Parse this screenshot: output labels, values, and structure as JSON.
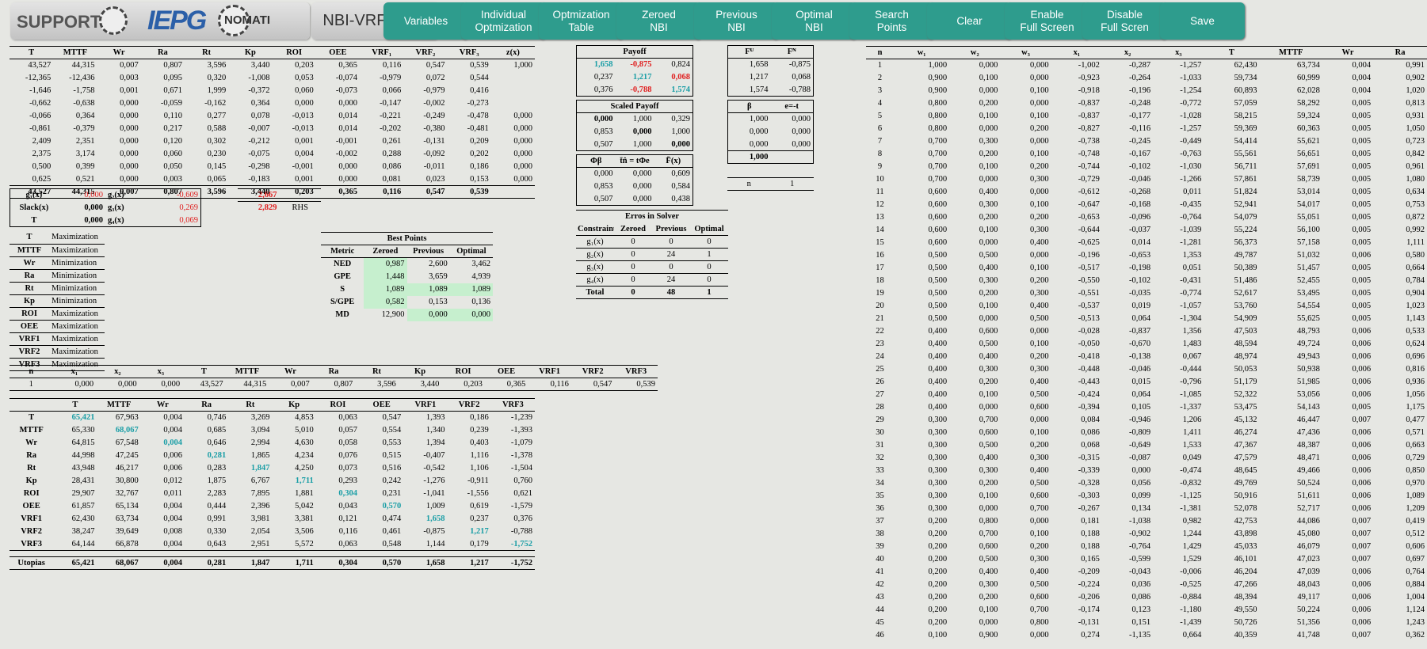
{
  "header": {
    "logo_text": "SUPPORT",
    "logo_brand": "IEPG",
    "logo_brand2": "NOMATI",
    "app_title": "NBI-VRF 3x3Y",
    "buttons": [
      "Variables",
      "Individual\nOptmization",
      "Optmization\nTable",
      "Zeroed\nNBI",
      "Previous\nNBI",
      "Optimal\nNBI",
      "Search\nPoints",
      "Clear",
      "Enable\nFull Screen",
      "Disable\nFull Scren",
      "Save"
    ]
  },
  "main_table": {
    "headers": [
      "T",
      "MTTF",
      "Wr",
      "Ra",
      "Rt",
      "Kp",
      "ROI",
      "OEE",
      "VRF₁",
      "VRF₂",
      "VRF₃",
      "z(x)"
    ],
    "rows": [
      [
        "43,527",
        "44,315",
        "0,007",
        "0,807",
        "3,596",
        "3,440",
        "0,203",
        "0,365",
        "0,116",
        "0,547",
        "0,539",
        "1,000"
      ],
      [
        "-12,365",
        "-12,436",
        "0,003",
        "0,095",
        "0,320",
        "-1,008",
        "0,053",
        "-0,074",
        "-0,979",
        "0,072",
        "0,544",
        ""
      ],
      [
        "-1,646",
        "-1,758",
        "0,001",
        "0,671",
        "1,999",
        "-0,372",
        "0,060",
        "-0,073",
        "0,066",
        "-0,979",
        "0,416",
        ""
      ],
      [
        "-0,662",
        "-0,638",
        "0,000",
        "-0,059",
        "-0,162",
        "0,364",
        "0,000",
        "0,000",
        "-0,147",
        "-0,002",
        "-0,273",
        ""
      ],
      [
        "-0,066",
        "0,364",
        "0,000",
        "0,110",
        "0,277",
        "0,078",
        "-0,013",
        "0,014",
        "-0,221",
        "-0,249",
        "-0,478",
        "0,000"
      ],
      [
        "-0,861",
        "-0,379",
        "0,000",
        "0,217",
        "0,588",
        "-0,007",
        "-0,013",
        "0,014",
        "-0,202",
        "-0,380",
        "-0,481",
        "0,000"
      ],
      [
        "2,409",
        "2,351",
        "0,000",
        "0,120",
        "0,302",
        "-0,212",
        "0,001",
        "-0,001",
        "0,261",
        "-0,131",
        "0,209",
        "0,000"
      ],
      [
        "2,375",
        "3,174",
        "0,000",
        "0,060",
        "0,230",
        "-0,075",
        "0,004",
        "-0,002",
        "0,288",
        "-0,092",
        "0,202",
        "0,000"
      ],
      [
        "0,500",
        "0,399",
        "0,000",
        "0,050",
        "0,145",
        "-0,298",
        "-0,001",
        "0,000",
        "0,086",
        "-0,011",
        "0,186",
        "0,000"
      ],
      [
        "0,625",
        "0,521",
        "0,000",
        "0,003",
        "0,065",
        "-0,183",
        "0,001",
        "0,000",
        "0,081",
        "0,023",
        "0,153",
        "0,000"
      ]
    ],
    "total": [
      "43,527",
      "44,315",
      "0,007",
      "0,807",
      "3,596",
      "3,440",
      "0,203",
      "0,365",
      "0,116",
      "0,547",
      "0,539",
      ""
    ]
  },
  "constraints": {
    "rows": [
      [
        "g₁(x)",
        "0,000",
        "g₂(x)",
        "-0,609"
      ],
      [
        "Slack(x)",
        "0,000",
        "g₃(x)",
        "0,269"
      ],
      [
        "T",
        "0,000",
        "g₄(x)",
        "0,069"
      ]
    ],
    "rhs_values": [
      "2,667",
      "2,829"
    ],
    "rhs_label": "RHS"
  },
  "objectives": [
    [
      "T",
      "Maximization"
    ],
    [
      "MTTF",
      "Maximization"
    ],
    [
      "Wr",
      "Minimization"
    ],
    [
      "Ra",
      "Minimization"
    ],
    [
      "Rt",
      "Minimization"
    ],
    [
      "Kp",
      "Minimization"
    ],
    [
      "ROI",
      "Maximization"
    ],
    [
      "OEE",
      "Maximization"
    ],
    [
      "VRF1",
      "Maximization"
    ],
    [
      "VRF2",
      "Maximization"
    ],
    [
      "VRF3",
      "Maximization"
    ]
  ],
  "best_points": {
    "title": "Best Points",
    "headers": [
      "Metric",
      "Zeroed",
      "Previous",
      "Optimal"
    ],
    "rows": [
      [
        "NED",
        "0,987",
        "2,600",
        "3,462"
      ],
      [
        "GPE",
        "1,448",
        "3,659",
        "4,939"
      ],
      [
        "S",
        "1,089",
        "1,089",
        "1,089"
      ],
      [
        "S/GPE",
        "0,582",
        "0,153",
        "0,136"
      ],
      [
        "MD",
        "12,900",
        "0,000",
        "0,000"
      ]
    ]
  },
  "payoff": {
    "title": "Payoff",
    "rows": [
      [
        "1,658",
        "-0,875",
        "0,824"
      ],
      [
        "0,237",
        "1,217",
        "0,068"
      ],
      [
        "0,376",
        "-0,788",
        "1,574"
      ]
    ]
  },
  "scaled_payoff": {
    "title": "Scaled Payoff",
    "rows": [
      [
        "0,000",
        "1,000",
        "0,329"
      ],
      [
        "0,853",
        "0,000",
        "1,000"
      ],
      [
        "0,507",
        "1,000",
        "0,000"
      ]
    ]
  },
  "phi_table": {
    "headers": [
      "Φβ",
      "t̄n̂ = tΦe",
      "F̄(x)"
    ],
    "rows": [
      [
        "0,000",
        "0,000",
        "0,609"
      ],
      [
        "0,853",
        "0,000",
        "0,584"
      ],
      [
        "0,507",
        "0,000",
        "0,438"
      ]
    ]
  },
  "fu_fn": {
    "headers": [
      "Fᵁ",
      "Fᴺ"
    ],
    "rows": [
      [
        "1,658",
        "-0,875"
      ],
      [
        "1,217",
        "0,068"
      ],
      [
        "1,574",
        "-0,788"
      ]
    ]
  },
  "beta": {
    "headers": [
      "β",
      "e=-t"
    ],
    "rows": [
      [
        "1,000",
        "0,000"
      ],
      [
        "0,000",
        "0,000"
      ],
      [
        "0,000",
        "0,000"
      ]
    ],
    "sum": "1,000"
  },
  "n_value": {
    "label": "n",
    "value": "1"
  },
  "errors": {
    "title": "Erros in Solver",
    "headers": [
      "Constraint",
      "Zeroed",
      "Previous",
      "Optimal"
    ],
    "rows": [
      [
        "g₁(x)",
        "0",
        "0",
        "0"
      ],
      [
        "g₂(x)",
        "0",
        "24",
        "1"
      ],
      [
        "g₃(x)",
        "0",
        "0",
        "0"
      ],
      [
        "g₄(x)",
        "0",
        "24",
        "0"
      ]
    ],
    "total": [
      "Total",
      "0",
      "48",
      "1"
    ]
  },
  "solution": {
    "headers": [
      "n",
      "x₁",
      "x₂",
      "x₃",
      "T",
      "MTTF",
      "Wr",
      "Ra",
      "Rt",
      "Kp",
      "ROI",
      "OEE",
      "VRF1",
      "VRF2",
      "VRF3"
    ],
    "row": [
      "1",
      "0,000",
      "0,000",
      "0,000",
      "43,527",
      "44,315",
      "0,007",
      "0,807",
      "3,596",
      "3,440",
      "0,203",
      "0,365",
      "0,116",
      "0,547",
      "0,539"
    ]
  },
  "payoff_matrix": {
    "headers": [
      "",
      "T",
      "MTTF",
      "Wr",
      "Ra",
      "Rt",
      "Kp",
      "ROI",
      "OEE",
      "VRF1",
      "VRF2",
      "VRF3"
    ],
    "rows": [
      [
        "T",
        "65,421",
        "67,963",
        "0,004",
        "0,746",
        "3,269",
        "4,853",
        "0,063",
        "0,547",
        "1,393",
        "0,186",
        "-1,239"
      ],
      [
        "MTTF",
        "65,330",
        "68,067",
        "0,004",
        "0,685",
        "3,094",
        "5,010",
        "0,057",
        "0,554",
        "1,340",
        "0,239",
        "-1,393"
      ],
      [
        "Wr",
        "64,815",
        "67,548",
        "0,004",
        "0,646",
        "2,994",
        "4,630",
        "0,058",
        "0,553",
        "1,394",
        "0,403",
        "-1,079"
      ],
      [
        "Ra",
        "44,998",
        "47,245",
        "0,006",
        "0,281",
        "1,865",
        "4,234",
        "0,076",
        "0,515",
        "-0,407",
        "1,116",
        "-1,378"
      ],
      [
        "Rt",
        "43,948",
        "46,217",
        "0,006",
        "0,283",
        "1,847",
        "4,250",
        "0,073",
        "0,516",
        "-0,542",
        "1,106",
        "-1,504"
      ],
      [
        "Kp",
        "28,431",
        "30,800",
        "0,012",
        "1,875",
        "6,767",
        "1,711",
        "0,293",
        "0,242",
        "-1,276",
        "-0,911",
        "0,760"
      ],
      [
        "ROI",
        "29,907",
        "32,767",
        "0,011",
        "2,283",
        "7,895",
        "1,881",
        "0,304",
        "0,231",
        "-1,041",
        "-1,556",
        "0,621"
      ],
      [
        "OEE",
        "61,857",
        "65,134",
        "0,004",
        "0,444",
        "2,396",
        "5,042",
        "0,043",
        "0,570",
        "1,009",
        "0,619",
        "-1,579"
      ],
      [
        "VRF1",
        "62,430",
        "63,734",
        "0,004",
        "0,991",
        "3,981",
        "3,381",
        "0,121",
        "0,474",
        "1,658",
        "0,237",
        "0,376"
      ],
      [
        "VRF2",
        "38,247",
        "39,649",
        "0,008",
        "0,330",
        "2,054",
        "3,506",
        "0,116",
        "0,461",
        "-0,875",
        "1,217",
        "-0,788"
      ],
      [
        "VRF3",
        "64,144",
        "66,878",
        "0,004",
        "0,643",
        "2,951",
        "5,572",
        "0,063",
        "0,548",
        "1,144",
        "0,179",
        "-1,752"
      ]
    ],
    "utopias": [
      "Utopias",
      "65,421",
      "68,067",
      "0,004",
      "0,281",
      "1,847",
      "1,711",
      "0,304",
      "0,570",
      "1,658",
      "1,217",
      "-1,752"
    ]
  },
  "search": {
    "headers": [
      "n",
      "w₁",
      "w₂",
      "w₃",
      "x₁",
      "x₂",
      "x₃",
      "T",
      "MTTF",
      "Wr",
      "Ra"
    ],
    "rows": [
      [
        "1",
        "1,000",
        "0,000",
        "0,000",
        "-1,002",
        "-0,287",
        "-1,257",
        "62,430",
        "63,734",
        "0,004",
        "0,991"
      ],
      [
        "2",
        "0,900",
        "0,100",
        "0,000",
        "-0,923",
        "-0,264",
        "-1,033",
        "59,734",
        "60,999",
        "0,004",
        "0,902"
      ],
      [
        "3",
        "0,900",
        "0,000",
        "0,100",
        "-0,918",
        "-0,196",
        "-1,254",
        "60,893",
        "62,028",
        "0,004",
        "1,020"
      ],
      [
        "4",
        "0,800",
        "0,200",
        "0,000",
        "-0,837",
        "-0,248",
        "-0,772",
        "57,059",
        "58,292",
        "0,005",
        "0,813"
      ],
      [
        "5",
        "0,800",
        "0,100",
        "0,100",
        "-0,837",
        "-0,177",
        "-1,028",
        "58,215",
        "59,324",
        "0,005",
        "0,931"
      ],
      [
        "6",
        "0,800",
        "0,000",
        "0,200",
        "-0,827",
        "-0,116",
        "-1,257",
        "59,369",
        "60,363",
        "0,005",
        "1,050"
      ],
      [
        "7",
        "0,700",
        "0,300",
        "0,000",
        "-0,738",
        "-0,245",
        "-0,449",
        "54,414",
        "55,621",
        "0,005",
        "0,723"
      ],
      [
        "8",
        "0,700",
        "0,200",
        "0,100",
        "-0,748",
        "-0,167",
        "-0,763",
        "55,561",
        "56,651",
        "0,005",
        "0,842"
      ],
      [
        "9",
        "0,700",
        "0,100",
        "0,200",
        "-0,744",
        "-0,102",
        "-1,030",
        "56,711",
        "57,691",
        "0,005",
        "0,961"
      ],
      [
        "10",
        "0,700",
        "0,000",
        "0,300",
        "-0,729",
        "-0,046",
        "-1,266",
        "57,861",
        "58,739",
        "0,005",
        "1,080"
      ],
      [
        "11",
        "0,600",
        "0,400",
        "0,000",
        "-0,612",
        "-0,268",
        "0,011",
        "51,824",
        "53,014",
        "0,005",
        "0,634"
      ],
      [
        "12",
        "0,600",
        "0,300",
        "0,100",
        "-0,647",
        "-0,168",
        "-0,435",
        "52,941",
        "54,017",
        "0,005",
        "0,753"
      ],
      [
        "13",
        "0,600",
        "0,200",
        "0,200",
        "-0,653",
        "-0,096",
        "-0,764",
        "54,079",
        "55,051",
        "0,005",
        "0,872"
      ],
      [
        "14",
        "0,600",
        "0,100",
        "0,300",
        "-0,644",
        "-0,037",
        "-1,039",
        "55,224",
        "56,100",
        "0,005",
        "0,992"
      ],
      [
        "15",
        "0,600",
        "0,000",
        "0,400",
        "-0,625",
        "0,014",
        "-1,281",
        "56,373",
        "57,158",
        "0,005",
        "1,111"
      ],
      [
        "16",
        "0,500",
        "0,500",
        "0,000",
        "-0,196",
        "-0,653",
        "1,353",
        "49,787",
        "51,032",
        "0,006",
        "0,580"
      ],
      [
        "17",
        "0,500",
        "0,400",
        "0,100",
        "-0,517",
        "-0,198",
        "0,051",
        "50,389",
        "51,457",
        "0,005",
        "0,664"
      ],
      [
        "18",
        "0,500",
        "0,300",
        "0,200",
        "-0,550",
        "-0,102",
        "-0,431",
        "51,486",
        "52,455",
        "0,005",
        "0,784"
      ],
      [
        "19",
        "0,500",
        "0,200",
        "0,300",
        "-0,551",
        "-0,035",
        "-0,774",
        "52,617",
        "53,495",
        "0,005",
        "0,904"
      ],
      [
        "20",
        "0,500",
        "0,100",
        "0,400",
        "-0,537",
        "0,019",
        "-1,057",
        "53,760",
        "54,554",
        "0,005",
        "1,023"
      ],
      [
        "21",
        "0,500",
        "0,000",
        "0,500",
        "-0,513",
        "0,064",
        "-1,304",
        "54,909",
        "55,625",
        "0,005",
        "1,143"
      ],
      [
        "22",
        "0,400",
        "0,600",
        "0,000",
        "-0,028",
        "-0,837",
        "1,356",
        "47,503",
        "48,793",
        "0,006",
        "0,533"
      ],
      [
        "23",
        "0,400",
        "0,500",
        "0,100",
        "-0,050",
        "-0,670",
        "1,483",
        "48,594",
        "49,724",
        "0,006",
        "0,624"
      ],
      [
        "24",
        "0,400",
        "0,400",
        "0,200",
        "-0,418",
        "-0,138",
        "0,067",
        "48,974",
        "49,943",
        "0,006",
        "0,696"
      ],
      [
        "25",
        "0,400",
        "0,300",
        "0,300",
        "-0,448",
        "-0,046",
        "-0,444",
        "50,053",
        "50,938",
        "0,006",
        "0,816"
      ],
      [
        "26",
        "0,400",
        "0,200",
        "0,400",
        "-0,443",
        "0,015",
        "-0,796",
        "51,179",
        "51,985",
        "0,006",
        "0,936"
      ],
      [
        "27",
        "0,400",
        "0,100",
        "0,500",
        "-0,424",
        "0,064",
        "-1,085",
        "52,322",
        "53,056",
        "0,006",
        "1,056"
      ],
      [
        "28",
        "0,400",
        "0,000",
        "0,600",
        "-0,394",
        "0,105",
        "-1,337",
        "53,475",
        "54,143",
        "0,005",
        "1,175"
      ],
      [
        "29",
        "0,300",
        "0,700",
        "0,000",
        "0,084",
        "-0,946",
        "1,206",
        "45,132",
        "46,447",
        "0,007",
        "0,477"
      ],
      [
        "30",
        "0,300",
        "0,600",
        "0,100",
        "0,086",
        "-0,809",
        "1,411",
        "46,274",
        "47,436",
        "0,006",
        "0,571"
      ],
      [
        "31",
        "0,300",
        "0,500",
        "0,200",
        "0,068",
        "-0,649",
        "1,533",
        "47,367",
        "48,387",
        "0,006",
        "0,663"
      ],
      [
        "32",
        "0,300",
        "0,400",
        "0,300",
        "-0,315",
        "-0,087",
        "0,049",
        "47,579",
        "48,471",
        "0,006",
        "0,729"
      ],
      [
        "33",
        "0,300",
        "0,300",
        "0,400",
        "-0,339",
        "0,000",
        "-0,474",
        "48,645",
        "49,466",
        "0,006",
        "0,850"
      ],
      [
        "34",
        "0,300",
        "0,200",
        "0,500",
        "-0,328",
        "0,056",
        "-0,832",
        "49,769",
        "50,524",
        "0,006",
        "0,970"
      ],
      [
        "35",
        "0,300",
        "0,100",
        "0,600",
        "-0,303",
        "0,099",
        "-1,125",
        "50,916",
        "51,611",
        "0,006",
        "1,089"
      ],
      [
        "36",
        "0,300",
        "0,000",
        "0,700",
        "-0,267",
        "0,134",
        "-1,381",
        "52,078",
        "52,717",
        "0,006",
        "1,209"
      ],
      [
        "37",
        "0,200",
        "0,800",
        "0,000",
        "0,181",
        "-1,038",
        "0,982",
        "42,753",
        "44,086",
        "0,007",
        "0,419"
      ],
      [
        "38",
        "0,200",
        "0,700",
        "0,100",
        "0,188",
        "-0,902",
        "1,244",
        "43,898",
        "45,080",
        "0,007",
        "0,512"
      ],
      [
        "39",
        "0,200",
        "0,600",
        "0,200",
        "0,188",
        "-0,764",
        "1,429",
        "45,033",
        "46,079",
        "0,007",
        "0,606"
      ],
      [
        "40",
        "0,200",
        "0,500",
        "0,300",
        "0,165",
        "-0,599",
        "1,529",
        "46,101",
        "47,023",
        "0,007",
        "0,697"
      ],
      [
        "41",
        "0,200",
        "0,400",
        "0,400",
        "-0,209",
        "-0,043",
        "-0,006",
        "46,204",
        "47,039",
        "0,006",
        "0,764"
      ],
      [
        "42",
        "0,200",
        "0,300",
        "0,500",
        "-0,224",
        "0,036",
        "-0,525",
        "47,266",
        "48,043",
        "0,006",
        "0,884"
      ],
      [
        "43",
        "0,200",
        "0,200",
        "0,600",
        "-0,206",
        "0,086",
        "-0,884",
        "48,394",
        "49,117",
        "0,006",
        "1,004"
      ],
      [
        "44",
        "0,200",
        "0,100",
        "0,700",
        "-0,174",
        "0,123",
        "-1,180",
        "49,550",
        "50,224",
        "0,006",
        "1,124"
      ],
      [
        "45",
        "0,200",
        "0,000",
        "0,800",
        "-0,131",
        "0,151",
        "-1,439",
        "50,726",
        "51,356",
        "0,006",
        "1,243"
      ],
      [
        "46",
        "0,100",
        "0,900",
        "0,000",
        "0,274",
        "-1,135",
        "0,664",
        "40,359",
        "41,748",
        "0,007",
        "0,362"
      ]
    ]
  },
  "colors": {
    "button": "#2e9c8d",
    "highlight_teal": "#1a9ea6",
    "negative_red": "#e02020",
    "best_green": "#c6efce",
    "background": "#e6e7e3"
  }
}
